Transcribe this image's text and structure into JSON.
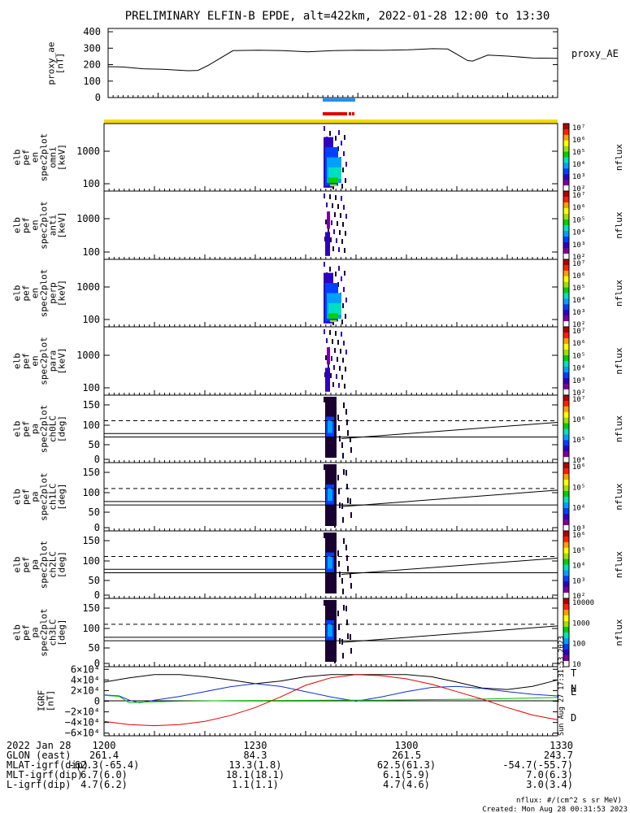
{
  "title": "PRELIMINARY ELFIN-B EPDE, alt=422km, 2022-01-28 12:00 to 13:30",
  "colors": {
    "status_blue": "#1e90ff",
    "status_red": "#e00000",
    "orbit_bar": "#f5d800",
    "green_line": "#00c000",
    "blue_line": "#1030d0",
    "red_line": "#e00000"
  },
  "chart_data": [
    {
      "id": "proxy_ae",
      "type": "line",
      "title": "",
      "ylabel_lines": [
        "proxy_ae",
        "[nT]"
      ],
      "legend": "proxy_AE",
      "ylim": [
        0,
        420
      ],
      "yticks": [
        "400",
        "300",
        "200",
        "100",
        "0"
      ],
      "ytick_values": [
        400,
        300,
        200,
        100,
        0
      ],
      "xlim": [
        0,
        90
      ],
      "x": [
        0,
        3,
        7,
        11,
        16,
        18,
        20,
        25,
        30,
        35,
        40,
        45,
        50,
        55,
        60,
        65,
        68,
        72,
        73,
        76,
        80,
        85,
        90
      ],
      "y": [
        188,
        186,
        175,
        172,
        163,
        165,
        195,
        285,
        288,
        285,
        278,
        285,
        288,
        287,
        290,
        297,
        295,
        225,
        222,
        258,
        252,
        240,
        238
      ]
    },
    {
      "id": "spec_omni",
      "type": "heatmap",
      "ylabel_lines": [
        "elb",
        "pef",
        "en",
        "spec2plot",
        "omni",
        "[keV]"
      ],
      "yticks": [
        "1000",
        "100"
      ],
      "cbar_ticks": [
        "10⁷",
        "10⁶",
        "10⁵",
        "10⁴",
        "10³",
        "10²"
      ],
      "cbar_label": "nflux"
    },
    {
      "id": "spec_anti",
      "type": "heatmap",
      "ylabel_lines": [
        "elb",
        "pef",
        "en",
        "spec2plot",
        "anti",
        "[keV]"
      ],
      "yticks": [
        "1000",
        "100"
      ],
      "cbar_ticks": [
        "10⁷",
        "10⁶",
        "10⁵",
        "10⁴",
        "10³",
        "10²"
      ],
      "cbar_label": "nflux"
    },
    {
      "id": "spec_perp",
      "type": "heatmap",
      "ylabel_lines": [
        "elb",
        "pef",
        "en",
        "spec2plot",
        "perp",
        "[keV]"
      ],
      "yticks": [
        "1000",
        "100"
      ],
      "cbar_ticks": [
        "10⁷",
        "10⁶",
        "10⁵",
        "10⁴",
        "10³",
        "10²"
      ],
      "cbar_label": "nflux"
    },
    {
      "id": "spec_para",
      "type": "heatmap",
      "ylabel_lines": [
        "elb",
        "pef",
        "en",
        "spec2plot",
        "para",
        "[keV]"
      ],
      "yticks": [
        "1000",
        "100"
      ],
      "cbar_ticks": [
        "10⁷",
        "10⁶",
        "10⁵",
        "10⁴",
        "10³",
        "10²"
      ],
      "cbar_label": "nflux"
    },
    {
      "id": "pa_ch0",
      "type": "heatmap",
      "ylabel_lines": [
        "elb",
        "pef",
        "pa",
        "spec2plot",
        "ch0LC",
        "[deg]"
      ],
      "yticks": [
        "150",
        "100",
        "50",
        "0"
      ],
      "cbar_ticks": [
        "10⁷",
        "10⁶",
        "10⁵",
        "10⁴"
      ],
      "cbar_label": "nflux"
    },
    {
      "id": "pa_ch1",
      "type": "heatmap",
      "ylabel_lines": [
        "elb",
        "pef",
        "pa",
        "spec2plot",
        "ch1LC",
        "[deg]"
      ],
      "yticks": [
        "150",
        "100",
        "50",
        "0"
      ],
      "cbar_ticks": [
        "10⁶",
        "10⁵",
        "10⁴",
        "10³"
      ],
      "cbar_label": "nflux"
    },
    {
      "id": "pa_ch2",
      "type": "heatmap",
      "ylabel_lines": [
        "elb",
        "pef",
        "pa",
        "spec2plot",
        "ch2LC",
        "[deg]"
      ],
      "yticks": [
        "150",
        "100",
        "50",
        "0"
      ],
      "cbar_ticks": [
        "10⁶",
        "10⁵",
        "10⁴",
        "10³",
        "10²"
      ],
      "cbar_label": "nflux"
    },
    {
      "id": "pa_ch3",
      "type": "heatmap",
      "ylabel_lines": [
        "elb",
        "pef",
        "pa",
        "spec2plot",
        "ch3LC",
        "[deg]"
      ],
      "yticks": [
        "150",
        "100",
        "50",
        "0"
      ],
      "cbar_ticks": [
        "10000",
        "1000",
        "100",
        "10"
      ],
      "cbar_label": "nflux"
    },
    {
      "id": "igrf",
      "type": "line",
      "ylabel_lines": [
        "IGRF",
        "[nT]"
      ],
      "ylim": [
        -65000,
        65000
      ],
      "yticks": [
        "6×10⁴",
        "4×10⁴",
        "2×10⁴",
        "0",
        "−2×10⁴",
        "−4×10⁴",
        "−6×10⁴"
      ],
      "ytick_values": [
        60000,
        40000,
        20000,
        0,
        -20000,
        -40000,
        -60000
      ],
      "legend": [
        "T",
        "N",
        "E",
        "D"
      ],
      "legend_colors": [
        "#000000",
        "#1030d0",
        "#00c000",
        "#e00000"
      ],
      "xlim": [
        0,
        90
      ],
      "series": [
        {
          "name": "T",
          "x": [
            0,
            5,
            10,
            15,
            20,
            25,
            30,
            35,
            40,
            45,
            50,
            55,
            60,
            65,
            70,
            75,
            80,
            85,
            90
          ],
          "values": [
            36000,
            44000,
            50000,
            50000,
            46000,
            40000,
            33000,
            38000,
            46000,
            50000,
            50000,
            50000,
            50000,
            46000,
            36000,
            25000,
            22000,
            28000,
            40000
          ]
        },
        {
          "name": "N",
          "x": [
            0,
            3,
            5,
            7,
            10,
            15,
            20,
            25,
            30,
            35,
            40,
            45,
            50,
            55,
            60,
            65,
            70,
            75,
            80,
            85,
            90
          ],
          "values": [
            12000,
            10000,
            2000,
            -3000,
            2000,
            9000,
            18000,
            27000,
            33000,
            28000,
            18000,
            8000,
            0,
            8000,
            18000,
            26000,
            28000,
            24000,
            18000,
            13000,
            10000
          ]
        },
        {
          "name": "E",
          "x": [
            0,
            3,
            5,
            8,
            15,
            25,
            35,
            45,
            55,
            65,
            75,
            85,
            90
          ],
          "values": [
            11000,
            9000,
            -3000,
            -1500,
            0,
            1000,
            1500,
            2000,
            2000,
            3000,
            4000,
            6000,
            7000
          ]
        },
        {
          "name": "D",
          "x": [
            0,
            5,
            10,
            15,
            20,
            25,
            30,
            35,
            40,
            45,
            50,
            55,
            60,
            65,
            70,
            75,
            80,
            85,
            90
          ],
          "values": [
            -38000,
            -44000,
            -46000,
            -44000,
            -38000,
            -27000,
            -12000,
            8000,
            30000,
            44000,
            50000,
            48000,
            42000,
            32000,
            18000,
            4000,
            -12000,
            -26000,
            -35000
          ]
        }
      ]
    }
  ],
  "footer": {
    "rows": [
      {
        "label": "2022 Jan 28",
        "values": [
          "1200",
          "1230",
          "1300",
          "1330"
        ]
      },
      {
        "label": "GLON (east)",
        "values": [
          "261.4",
          "84.3",
          "261.5",
          "243.7"
        ]
      },
      {
        "label": "MLAT-igrf(dip)",
        "values": [
          "-62.3(-65.4)",
          "13.3(1.8)",
          "62.5(61.3)",
          "-54.7(-55.7)"
        ]
      },
      {
        "label": "MLT-igrf(dip)",
        "values": [
          "6.7(6.0)",
          "18.1(18.1)",
          "6.1(5.9)",
          "7.0(6.3)"
        ]
      },
      {
        "label": "L-igrf(dip)",
        "values": [
          "4.7(6.2)",
          "1.1(1.1)",
          "4.7(4.6)",
          "3.0(3.4)"
        ]
      }
    ],
    "units_note": "nflux: #/(cm^2 s sr MeV)",
    "created": "Created: Mon Aug 28 00:31:53 2023",
    "side_stamp": "Sun Aug 27 17:31:53 2023"
  }
}
